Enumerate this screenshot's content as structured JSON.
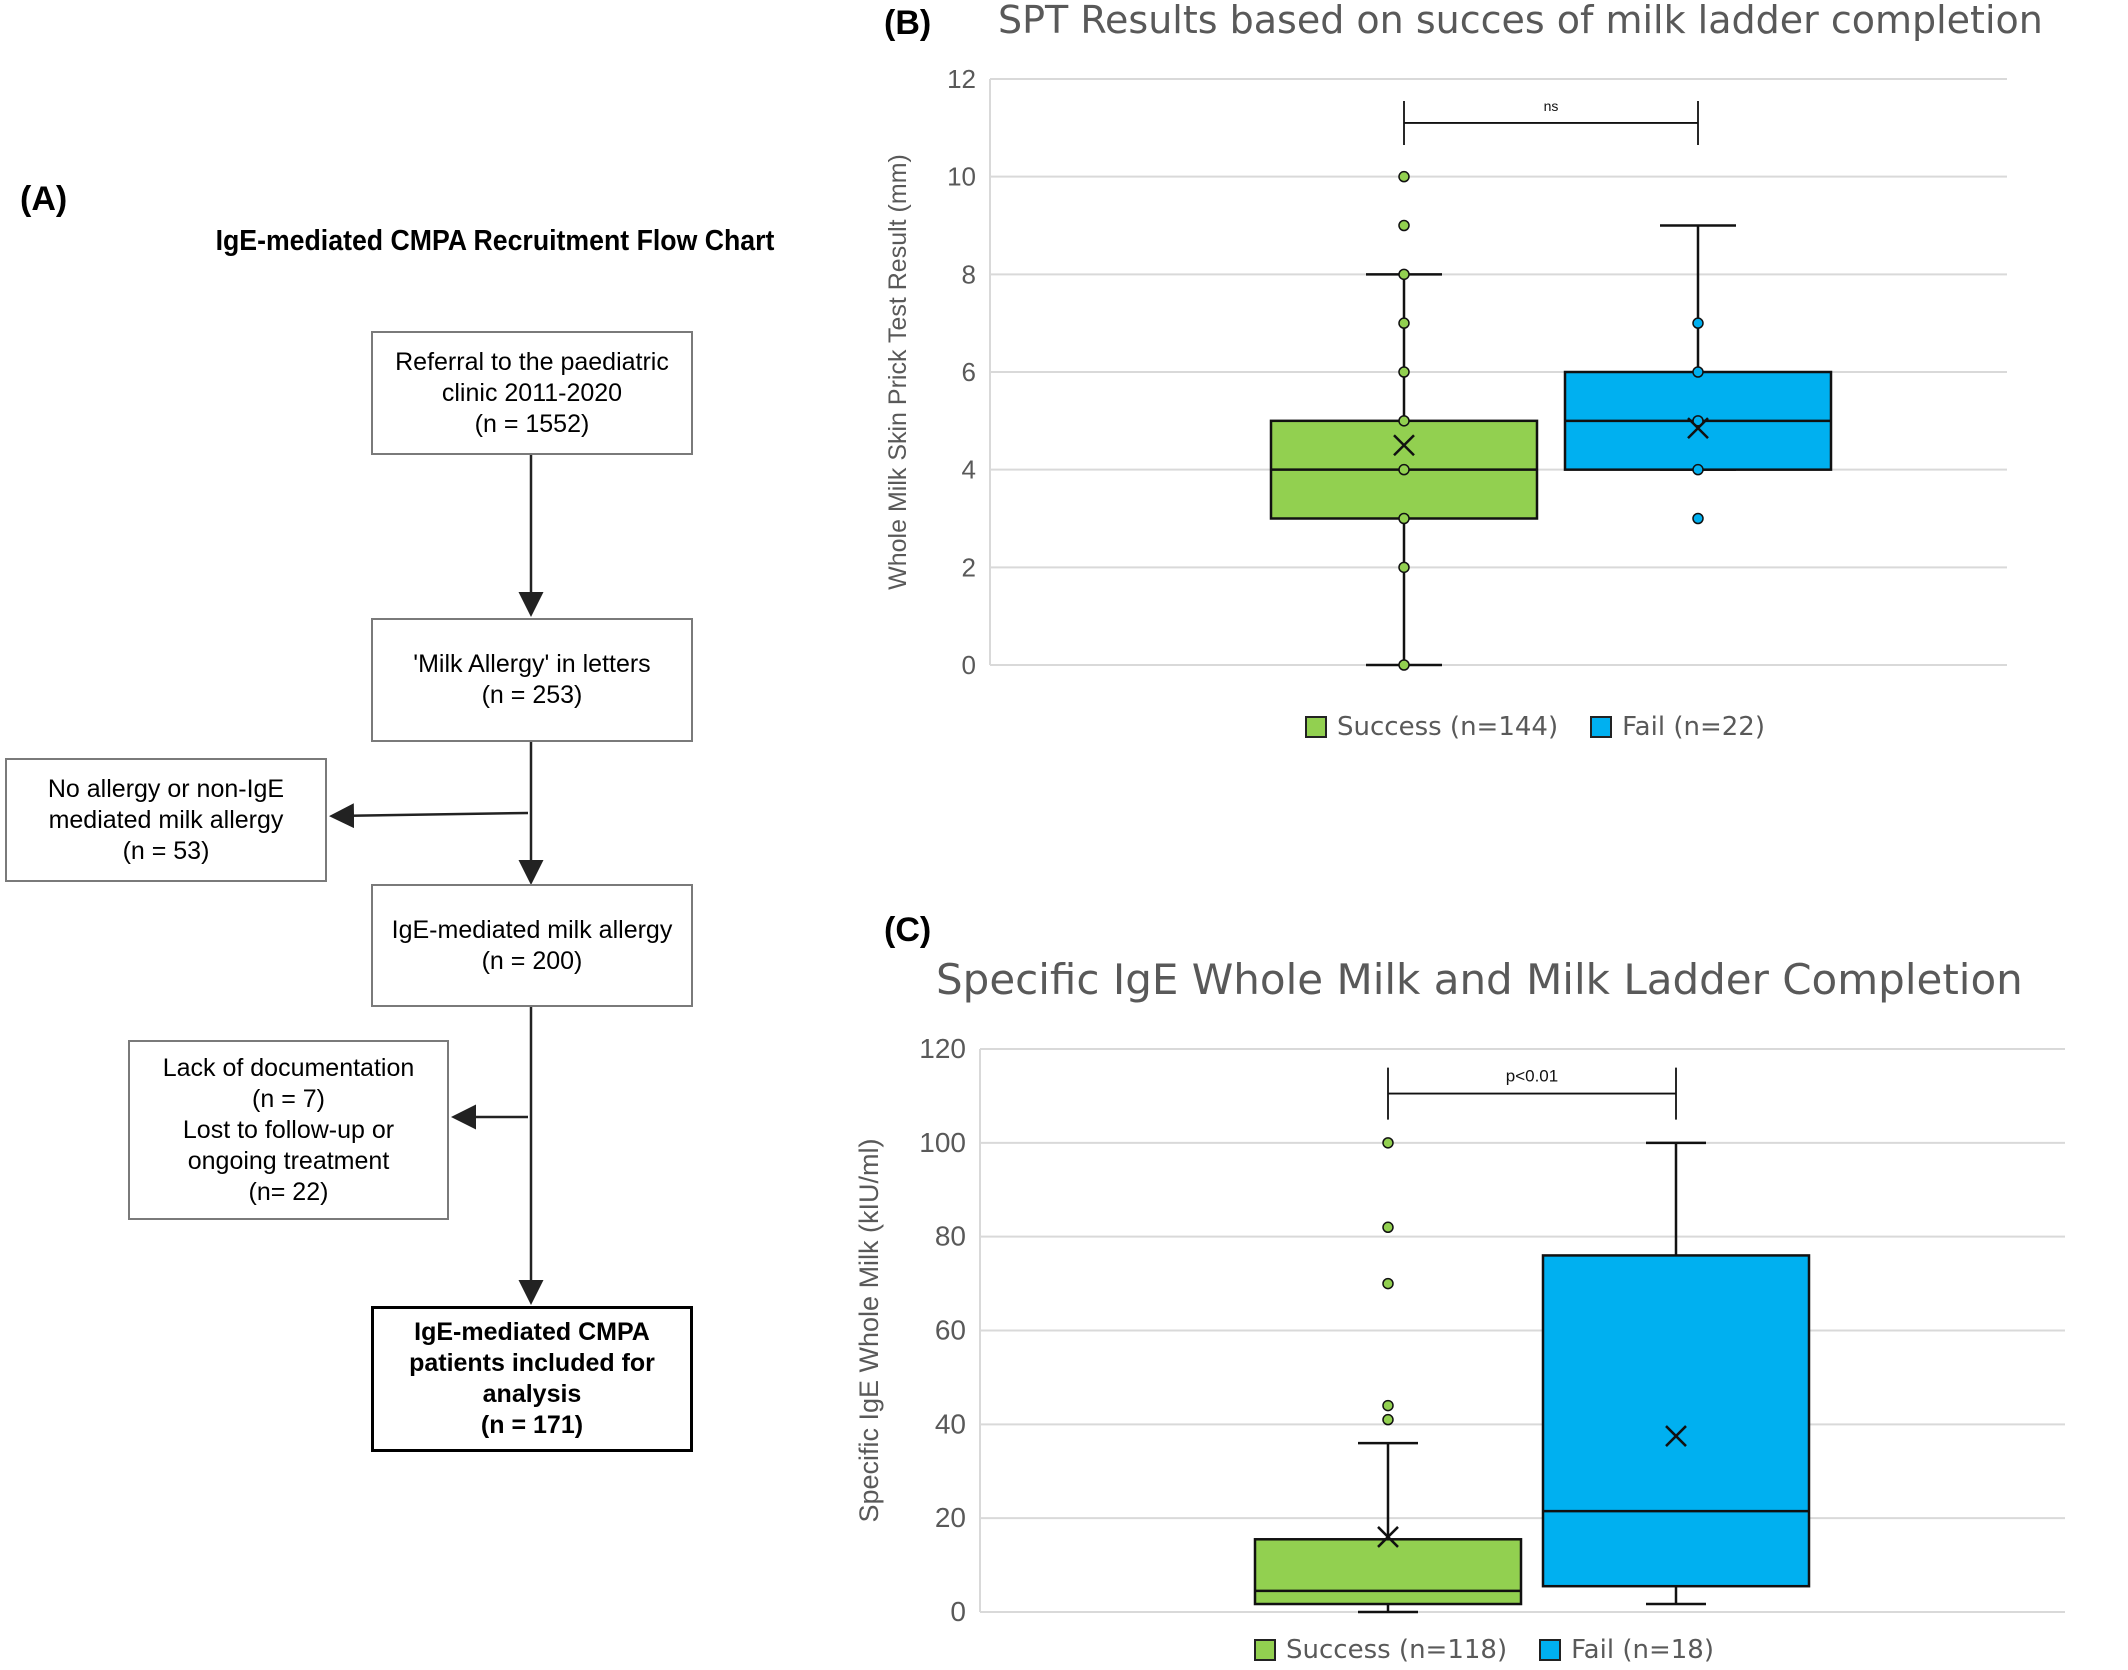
{
  "panel_a": {
    "letter": "(A)",
    "title": "IgE-mediated CMPA Recruitment Flow Chart",
    "boxes": {
      "referral": [
        "Referral to the paediatric",
        "clinic 2011-2020",
        "(n = 1552)"
      ],
      "letters": [
        "'Milk Allergy' in letters",
        "(n = 253)"
      ],
      "no_allergy": [
        "No allergy or non-IgE",
        "mediated milk allergy",
        "(n = 53)"
      ],
      "ige": [
        "IgE-mediated milk allergy",
        "(n = 200)"
      ],
      "lack": [
        "Lack of documentation",
        "(n = 7)",
        "Lost to follow-up or",
        "ongoing treatment",
        "(n= 22)"
      ],
      "final": [
        "IgE-mediated CMPA",
        "patients included for",
        "analysis",
        "(n = 171)"
      ]
    }
  },
  "chart_data": [
    {
      "panel": "(B)",
      "type": "box",
      "title": "SPT Results based on succes of milk ladder completion",
      "ylabel": "Whole Milk Skin Prick Test Result (mm)",
      "xlabel": "",
      "ylim": [
        0,
        12
      ],
      "yticks": [
        0,
        2,
        4,
        6,
        8,
        10,
        12
      ],
      "grid": true,
      "legend_position": "bottom",
      "significance": "ns",
      "series": [
        {
          "name": "Success (n=144)",
          "color": "#92d050",
          "min": 0,
          "q1": 3,
          "median": 4,
          "q3": 5,
          "max": 8,
          "mean": 4.5,
          "points": [
            0,
            2,
            3,
            4,
            5,
            6,
            7,
            8,
            9,
            10
          ]
        },
        {
          "name": "Fail (n=22)",
          "color": "#00b0f0",
          "min": 4,
          "q1": 4,
          "median": 5,
          "q3": 6,
          "max": 9,
          "mean": 4.85,
          "points": [
            3,
            4,
            5,
            6,
            7
          ]
        }
      ]
    },
    {
      "panel": "(C)",
      "type": "box",
      "title": "Specific IgE Whole Milk and Milk Ladder Completion",
      "ylabel": "Specific IgE Whole Milk (kIU/ml)",
      "xlabel": "",
      "ylim": [
        0,
        120
      ],
      "yticks": [
        0,
        20,
        40,
        60,
        80,
        100,
        120
      ],
      "grid": true,
      "legend_position": "bottom",
      "significance": "p<0.01",
      "series": [
        {
          "name": "Success (n=118)",
          "color": "#92d050",
          "min": 0,
          "q1": 1.7,
          "median": 4.5,
          "q3": 15.5,
          "max": 36,
          "mean": 16,
          "points": [
            41,
            44,
            70,
            82,
            100
          ]
        },
        {
          "name": "Fail (n=18)",
          "color": "#00b0f0",
          "min": 1.7,
          "q1": 5.5,
          "median": 21.5,
          "q3": 76,
          "max": 100,
          "mean": 37.5,
          "points": []
        }
      ]
    }
  ]
}
